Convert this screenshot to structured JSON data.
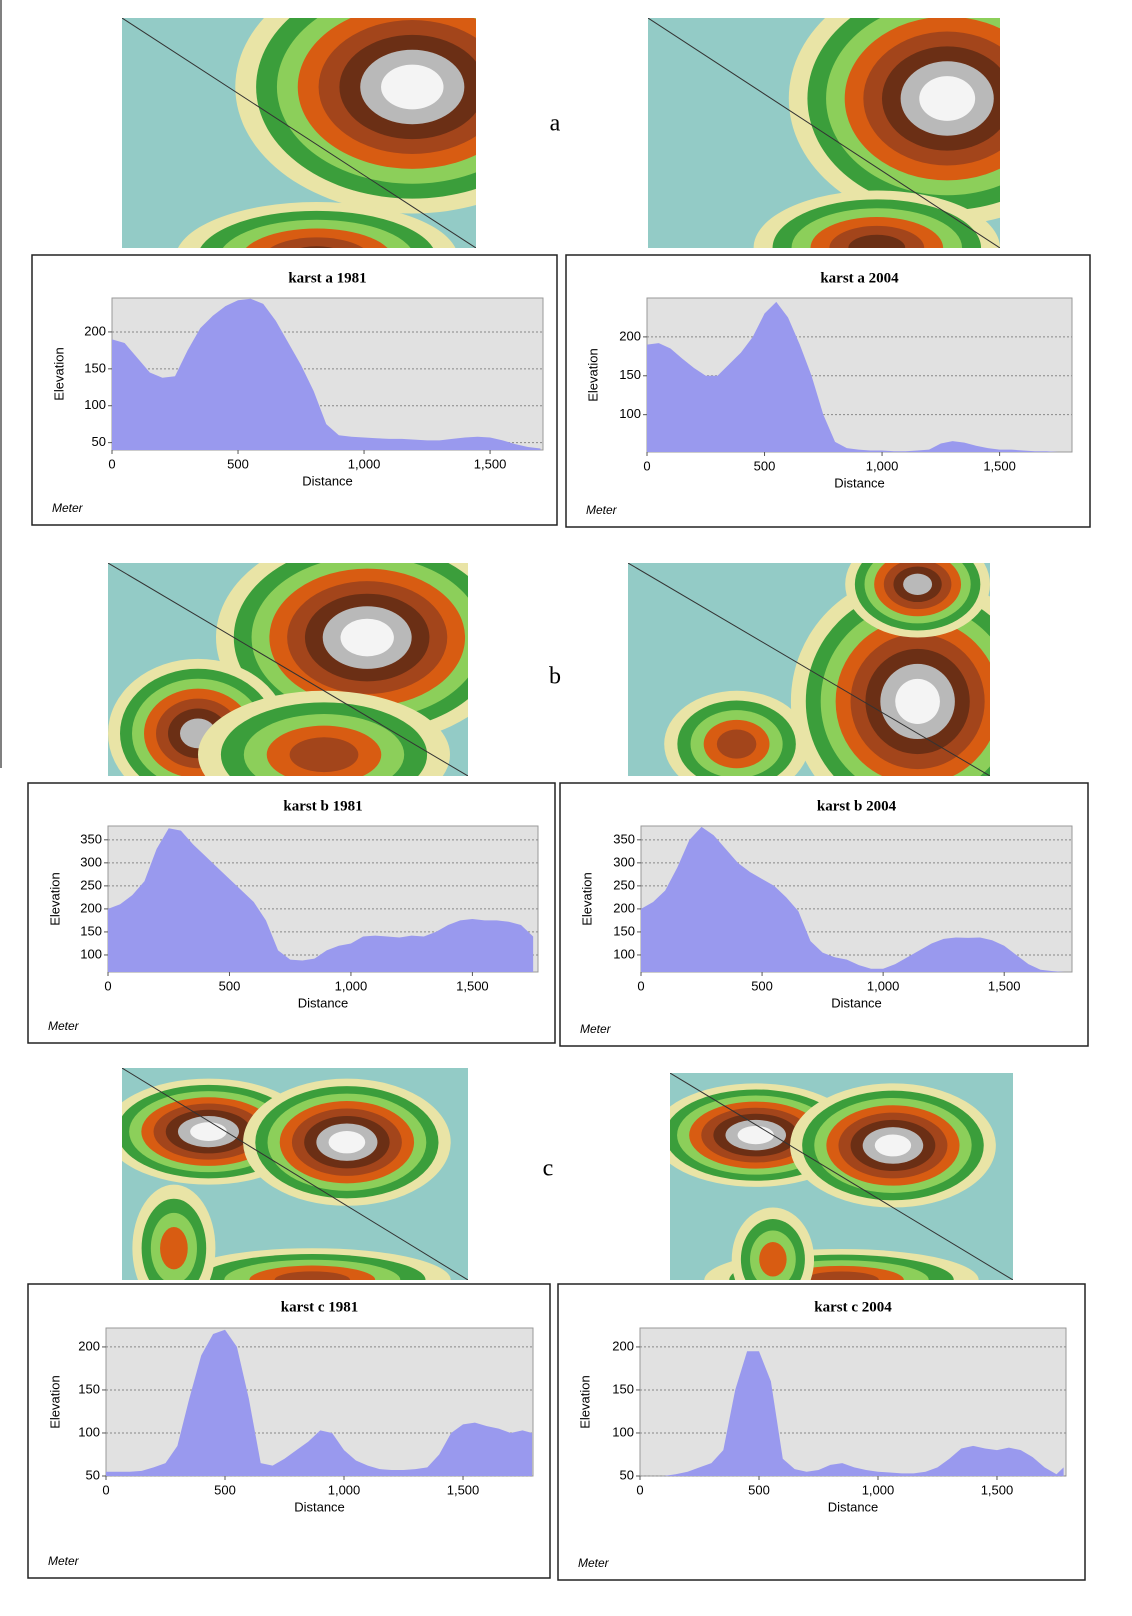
{
  "panel_labels": [
    "a",
    "b",
    "c"
  ],
  "chart_data": [
    {
      "type": "area",
      "title": "karst a 1981",
      "xlabel": "Distance",
      "ylabel": "Elevation",
      "note": "Meter",
      "color": "#9999ee",
      "grid": true,
      "x": [
        0,
        50,
        100,
        150,
        200,
        250,
        300,
        350,
        400,
        450,
        500,
        550,
        600,
        650,
        700,
        750,
        800,
        850,
        900,
        950,
        1000,
        1050,
        1100,
        1150,
        1200,
        1250,
        1300,
        1350,
        1400,
        1450,
        1500,
        1550,
        1600,
        1650,
        1700
      ],
      "values": [
        190,
        185,
        165,
        145,
        138,
        140,
        175,
        205,
        222,
        235,
        243,
        245,
        238,
        215,
        185,
        155,
        120,
        75,
        60,
        58,
        57,
        56,
        55,
        55,
        54,
        53,
        53,
        55,
        57,
        58,
        57,
        53,
        48,
        44,
        42
      ],
      "xlim": [
        0,
        1710
      ],
      "ylim": [
        40,
        246
      ],
      "xticks": [
        0,
        500,
        {
          "value": 1000,
          "label": "1,000"
        },
        {
          "value": 1500,
          "label": "1,500"
        }
      ],
      "yticks": [
        50,
        100,
        150,
        200
      ]
    },
    {
      "type": "area",
      "title": "karst a 2004",
      "xlabel": "Distance",
      "ylabel": "Elevation",
      "note": "Meter",
      "color": "#9999ee",
      "grid": true,
      "x": [
        0,
        50,
        100,
        150,
        200,
        250,
        300,
        350,
        400,
        450,
        500,
        550,
        600,
        650,
        700,
        750,
        800,
        850,
        900,
        950,
        1000,
        1050,
        1100,
        1150,
        1200,
        1250,
        1300,
        1350,
        1400,
        1450,
        1500,
        1550,
        1600,
        1650,
        1700,
        1750,
        1800
      ],
      "values": [
        190,
        192,
        185,
        172,
        160,
        150,
        150,
        165,
        180,
        200,
        230,
        245,
        225,
        190,
        150,
        100,
        65,
        57,
        55,
        54,
        54,
        53,
        53,
        54,
        55,
        63,
        66,
        64,
        60,
        57,
        55,
        55,
        54,
        53,
        53,
        52,
        52
      ],
      "xlim": [
        0,
        1808
      ],
      "ylim": [
        52,
        250
      ],
      "xticks": [
        0,
        500,
        {
          "value": 1000,
          "label": "1,000"
        },
        {
          "value": 1500,
          "label": "1,500"
        }
      ],
      "yticks": [
        100,
        150,
        200
      ]
    },
    {
      "type": "area",
      "title": "karst b 1981",
      "xlabel": "Distance",
      "ylabel": "Elevation",
      "note": "Meter",
      "color": "#9999ee",
      "grid": true,
      "x": [
        0,
        50,
        100,
        150,
        200,
        250,
        300,
        350,
        400,
        450,
        500,
        550,
        600,
        650,
        700,
        750,
        800,
        850,
        900,
        950,
        1000,
        1050,
        1100,
        1150,
        1200,
        1250,
        1300,
        1350,
        1400,
        1450,
        1500,
        1550,
        1600,
        1650,
        1700,
        1750
      ],
      "values": [
        200,
        210,
        230,
        260,
        330,
        375,
        370,
        340,
        315,
        290,
        265,
        240,
        215,
        175,
        110,
        90,
        88,
        92,
        110,
        120,
        125,
        140,
        142,
        140,
        138,
        142,
        140,
        150,
        165,
        175,
        178,
        175,
        175,
        172,
        165,
        140
      ],
      "xlim": [
        0,
        1770
      ],
      "ylim": [
        63,
        380
      ],
      "xticks": [
        0,
        500,
        {
          "value": 1000,
          "label": "1,000"
        },
        {
          "value": 1500,
          "label": "1,500"
        }
      ],
      "yticks": [
        100,
        150,
        200,
        250,
        300,
        350
      ]
    },
    {
      "type": "area",
      "title": "karst b 2004",
      "xlabel": "Distance",
      "ylabel": "Elevation",
      "note": "Meter",
      "color": "#9999ee",
      "grid": true,
      "x": [
        0,
        50,
        100,
        150,
        200,
        250,
        300,
        350,
        400,
        450,
        500,
        550,
        600,
        650,
        700,
        750,
        800,
        850,
        900,
        950,
        1000,
        1050,
        1100,
        1150,
        1200,
        1250,
        1300,
        1350,
        1400,
        1450,
        1500,
        1550,
        1600,
        1650,
        1700,
        1750
      ],
      "values": [
        200,
        215,
        240,
        290,
        350,
        378,
        360,
        330,
        300,
        280,
        265,
        250,
        225,
        195,
        130,
        105,
        95,
        90,
        78,
        70,
        70,
        80,
        95,
        110,
        125,
        135,
        138,
        137,
        138,
        132,
        120,
        100,
        80,
        68,
        65,
        63
      ],
      "xlim": [
        0,
        1780
      ],
      "ylim": [
        63,
        380
      ],
      "xticks": [
        0,
        500,
        {
          "value": 1000,
          "label": "1,000"
        },
        {
          "value": 1500,
          "label": "1,500"
        }
      ],
      "yticks": [
        100,
        150,
        200,
        250,
        300,
        350
      ]
    },
    {
      "type": "area",
      "title": "karst c 1981",
      "xlabel": "Distance",
      "ylabel": "Elevation",
      "note": "Meter",
      "color": "#9999ee",
      "grid": true,
      "x": [
        0,
        50,
        100,
        150,
        200,
        250,
        300,
        350,
        400,
        450,
        500,
        550,
        600,
        650,
        700,
        750,
        800,
        850,
        900,
        950,
        1000,
        1050,
        1100,
        1150,
        1200,
        1250,
        1300,
        1350,
        1400,
        1450,
        1500,
        1550,
        1600,
        1650,
        1700,
        1750,
        1790
      ],
      "values": [
        55,
        55,
        55,
        56,
        60,
        65,
        85,
        140,
        190,
        215,
        220,
        200,
        140,
        65,
        62,
        70,
        80,
        90,
        103,
        100,
        80,
        68,
        62,
        58,
        57,
        57,
        58,
        60,
        75,
        100,
        110,
        112,
        108,
        105,
        100,
        103,
        100
      ],
      "xlim": [
        0,
        1794
      ],
      "ylim": [
        50,
        222
      ],
      "xticks": [
        0,
        500,
        {
          "value": 1000,
          "label": "1,000"
        },
        {
          "value": 1500,
          "label": "1,500"
        }
      ],
      "yticks": [
        50,
        100,
        150,
        200
      ]
    },
    {
      "type": "area",
      "title": "karst c 2004",
      "xlabel": "Distance",
      "ylabel": "Elevation",
      "note": "Meter",
      "color": "#9999ee",
      "grid": true,
      "x": [
        0,
        50,
        100,
        150,
        200,
        250,
        300,
        350,
        400,
        450,
        500,
        550,
        600,
        650,
        700,
        750,
        800,
        850,
        900,
        950,
        1000,
        1050,
        1100,
        1150,
        1200,
        1250,
        1300,
        1350,
        1400,
        1450,
        1500,
        1550,
        1600,
        1650,
        1700,
        1750,
        1780
      ],
      "values": [
        50,
        50,
        50,
        52,
        55,
        60,
        65,
        80,
        150,
        195,
        195,
        160,
        70,
        58,
        55,
        57,
        63,
        65,
        60,
        57,
        55,
        54,
        53,
        53,
        55,
        60,
        70,
        82,
        85,
        82,
        80,
        83,
        80,
        72,
        60,
        52,
        60
      ],
      "xlim": [
        0,
        1790
      ],
      "ylim": [
        50,
        222
      ],
      "xticks": [
        0,
        500,
        {
          "value": 1000,
          "label": "1,000"
        },
        {
          "value": 1500,
          "label": "1,500"
        }
      ],
      "yticks": [
        50,
        100,
        150,
        200
      ]
    }
  ]
}
